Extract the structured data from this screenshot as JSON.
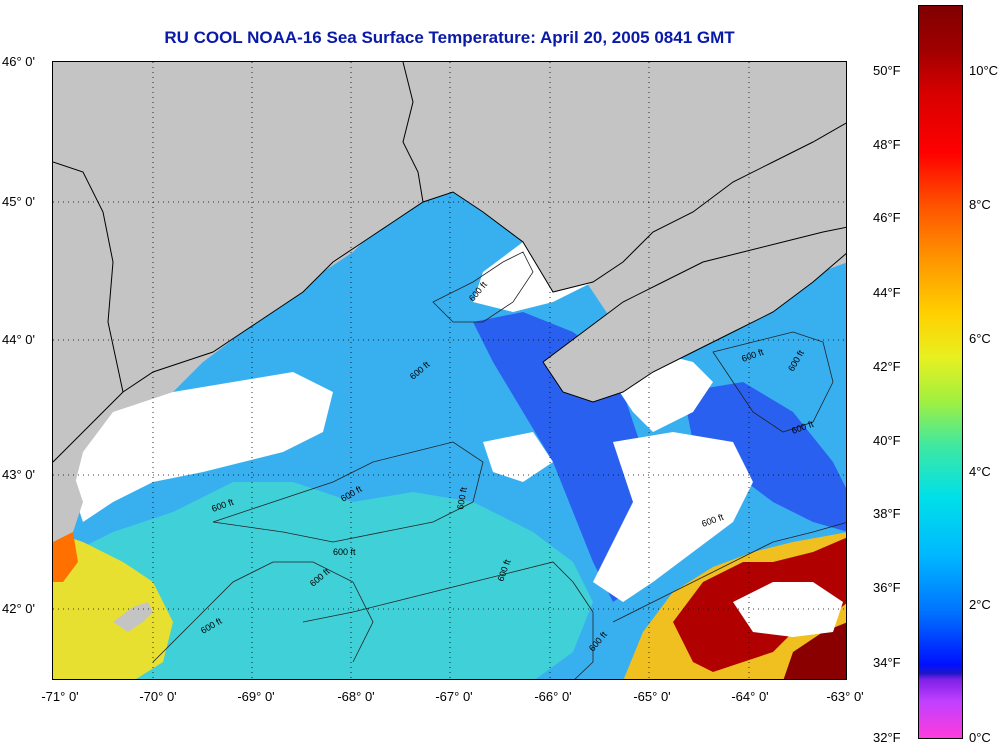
{
  "title": "RU COOL  NOAA-16  Sea Surface Temperature:  April 20, 2005 0841 GMT",
  "lat_labels": [
    "46° 0'",
    "45° 0'",
    "44° 0'",
    "43° 0'",
    "42° 0'"
  ],
  "lon_labels": [
    "-71° 0'",
    "-70° 0'",
    "-69° 0'",
    "-68° 0'",
    "-67° 0'",
    "-66° 0'",
    "-65° 0'",
    "-64° 0'",
    "-63° 0'"
  ],
  "colorbar": {
    "fahrenheit": [
      "50°F",
      "48°F",
      "46°F",
      "44°F",
      "42°F",
      "40°F",
      "38°F",
      "36°F",
      "34°F",
      "32°F"
    ],
    "celsius": [
      "10°C",
      "8°C",
      "6°C",
      "4°C",
      "2°C",
      "0°C"
    ]
  },
  "contour_label": "600 ft",
  "colors": {
    "land": "#c4c4c4",
    "cloud": "#ffffff",
    "title": "#0a1aa8",
    "sst_cold": "#2050f0",
    "sst_cool": "#20a0f8",
    "sst_mid": "#40c8e8",
    "sst_warm": "#f0e020",
    "sst_hot": "#a00000"
  }
}
